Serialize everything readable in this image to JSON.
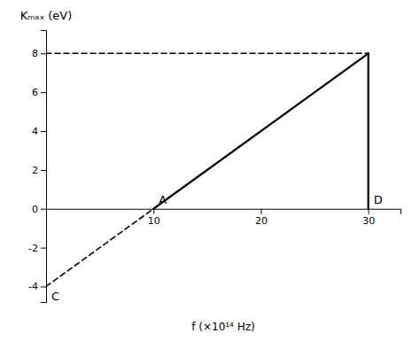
{
  "chart_data": {
    "type": "line",
    "x_label": "f (×10¹⁴ Hz)",
    "y_label": "Kₘₐₓ (eV)",
    "series": [
      {
        "x": [
          10,
          30
        ],
        "values": [
          0,
          8
        ],
        "line_style": "solid",
        "color": "#000000"
      },
      {
        "x": [
          0,
          10
        ],
        "values": [
          -4,
          0
        ],
        "line_style": "dashed",
        "color": "#000000"
      },
      {
        "x": [
          0,
          30
        ],
        "values": [
          8,
          8
        ],
        "line_style": "dashed",
        "color": "#000000"
      },
      {
        "x": [
          30,
          30
        ],
        "values": [
          0,
          8
        ],
        "line_style": "solid",
        "color": "#000000"
      }
    ],
    "annotations": [
      {
        "text": "A",
        "x": 10,
        "y": 0
      },
      {
        "text": "D",
        "x": 30,
        "y": 0
      },
      {
        "text": "C",
        "x": 0,
        "y": -4
      }
    ],
    "xlim": [
      0,
      33
    ],
    "ylim": [
      -4.8,
      9.2
    ],
    "xticks": [
      10,
      20,
      30
    ],
    "yticks": [
      -4,
      -2,
      0,
      2,
      4,
      6,
      8
    ]
  }
}
